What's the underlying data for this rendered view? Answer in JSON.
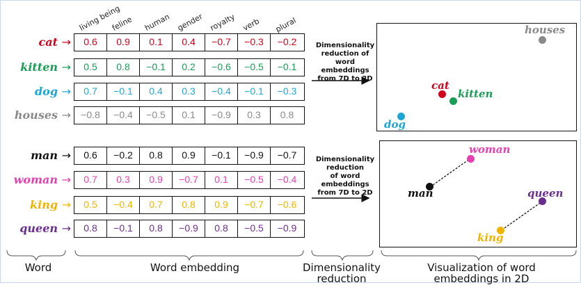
{
  "dimensions": [
    "living being",
    "feline",
    "human",
    "gender",
    "royalty",
    "verb",
    "plural"
  ],
  "arrow_glyph": "→",
  "groups": [
    {
      "words": [
        {
          "word": "cat",
          "color": "#d0021b",
          "values": [
            "0.6",
            "0.9",
            "0.1",
            "0.4",
            "−0.7",
            "−0.3",
            "−0.2"
          ]
        },
        {
          "word": "kitten",
          "color": "#1a9e55",
          "values": [
            "0.5",
            "0.8",
            "−0.1",
            "0.2",
            "−0.6",
            "−0.5",
            "−0.1"
          ]
        },
        {
          "word": "dog",
          "color": "#1ba6d6",
          "values": [
            "0.7",
            "−0.1",
            "0.4",
            "0.3",
            "−0.4",
            "−0.1",
            "−0.3"
          ]
        },
        {
          "word": "houses",
          "color": "#8a8a8a",
          "values": [
            "−0.8",
            "−0.4",
            "−0.5",
            "0.1",
            "−0.9",
            "0.3",
            "0.8"
          ]
        }
      ]
    },
    {
      "words": [
        {
          "word": "man",
          "color": "#111111",
          "values": [
            "0.6",
            "−0.2",
            "0.8",
            "0.9",
            "−0.1",
            "−0.9",
            "−0.7"
          ]
        },
        {
          "word": "woman",
          "color": "#e53fb4",
          "values": [
            "0.7",
            "0.3",
            "0.9",
            "−0.7",
            "0.1",
            "−0.5",
            "−0.4"
          ]
        },
        {
          "word": "king",
          "color": "#f0b400",
          "values": [
            "0.5",
            "−0.4",
            "0.7",
            "0.8",
            "0.9",
            "−0.7",
            "−0.6"
          ]
        },
        {
          "word": "queen",
          "color": "#6b2d8e",
          "values": [
            "0.8",
            "−0.1",
            "0.8",
            "−0.9",
            "0.8",
            "−0.5",
            "−0.9"
          ]
        }
      ]
    }
  ],
  "reduction_text_top": [
    "Dimensionality",
    "reduction of",
    "word",
    "embeddings",
    "from 7D to 2D"
  ],
  "reduction_text_bottom": [
    "Dimensionality",
    "reduction",
    "of word",
    "embeddings",
    "from 7D to 2D"
  ],
  "plot_top_points": [
    "houses",
    "cat",
    "kitten",
    "dog"
  ],
  "plot_bottom_points": [
    "woman",
    "man",
    "queen",
    "king"
  ],
  "footer": {
    "word": "Word",
    "embedding": "Word embedding",
    "reduction_line1": "Dimensionality",
    "reduction_line2": "reduction",
    "visual_line1": "Visualization of word",
    "visual_line2": "embeddings  in 2D"
  }
}
